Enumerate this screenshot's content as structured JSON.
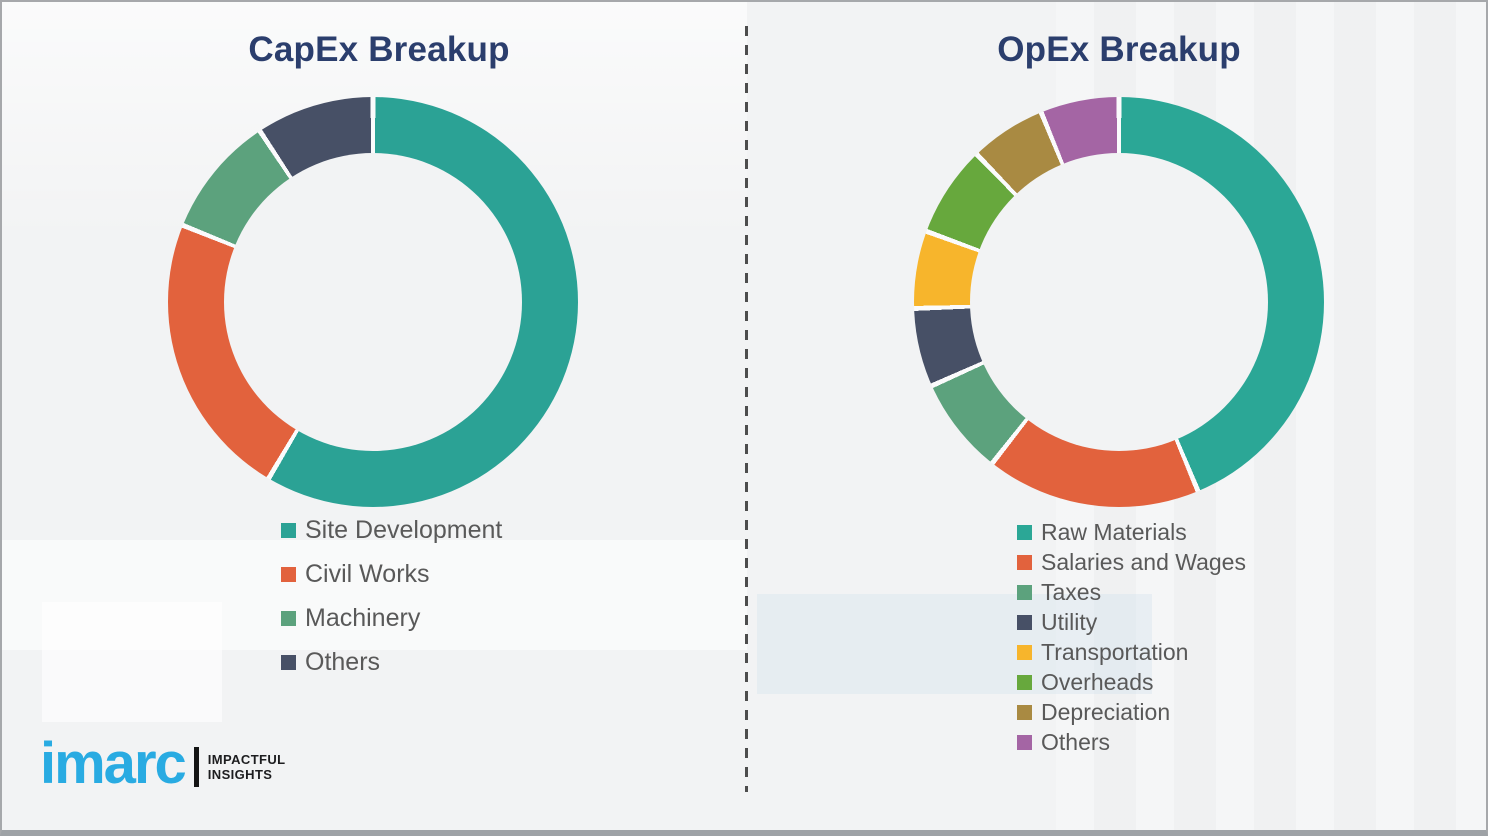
{
  "page": {
    "background_color": "#f2f3f4",
    "frame_border_color": "#a6a8ab",
    "divider_dash_color": "#4d4d4d",
    "title_color": "#2B3E6D",
    "legend_text_color": "#595959",
    "slice_gap_color": "#fbfbfc"
  },
  "chart_data": [
    {
      "type": "pie",
      "subtype": "donut",
      "title": "CapEx Breakup",
      "categories": [
        "Site Development",
        "Civil Works",
        "Machinery",
        "Others"
      ],
      "values": [
        58.5,
        22.6,
        9.6,
        9.3
      ],
      "colors": [
        "#2BA295",
        "#E2623D",
        "#5CA27D",
        "#475066"
      ],
      "start_angle_deg": 0,
      "direction": "clockwise",
      "data_labels_shown": false,
      "values_estimated_percent": true,
      "legend_position": "below-left"
    },
    {
      "type": "pie",
      "subtype": "donut",
      "title": "OpEx Breakup",
      "categories": [
        "Raw Materials",
        "Salaries and Wages",
        "Taxes",
        "Utility",
        "Transportation",
        "Overheads",
        "Depreciation",
        "Others"
      ],
      "values": [
        43.7,
        16.9,
        7.7,
        6.2,
        6.1,
        7.2,
        6.0,
        6.2
      ],
      "colors": [
        "#2BA796",
        "#E2623D",
        "#5CA27D",
        "#475066",
        "#F7B52C",
        "#67A83D",
        "#A98A42",
        "#A465A4"
      ],
      "start_angle_deg": 0,
      "direction": "clockwise",
      "data_labels_shown": false,
      "values_estimated_percent": true,
      "legend_position": "below-left"
    }
  ],
  "logo": {
    "wordmark": "imarc",
    "tagline": [
      "IMPACTFUL",
      "INSIGHTS"
    ],
    "brand_color": "#29ABE2"
  }
}
